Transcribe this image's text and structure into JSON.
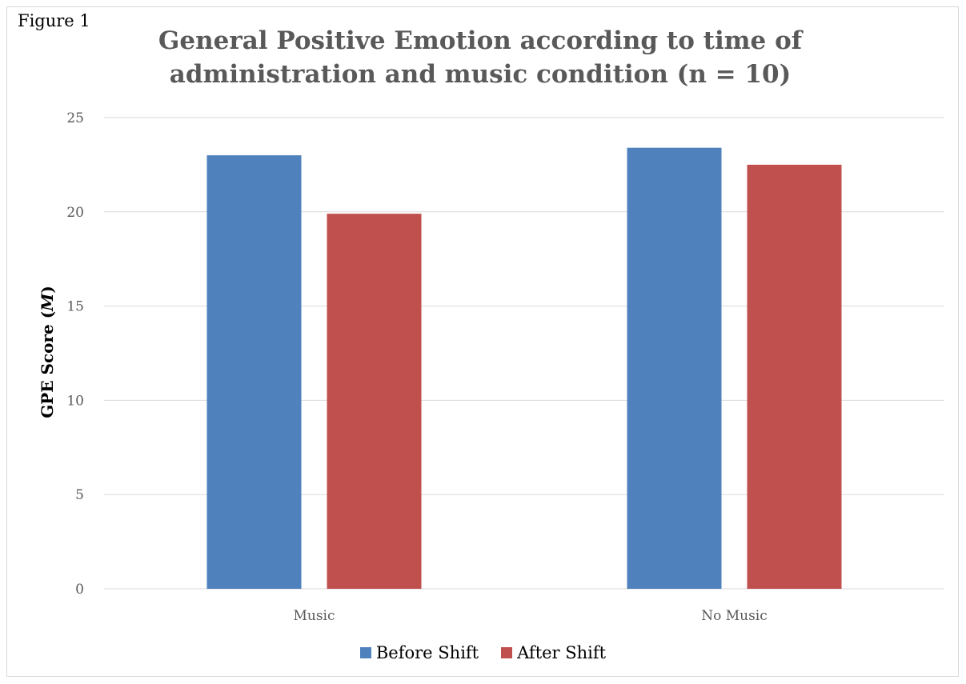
{
  "figure_label": "Figure 1",
  "colors": {
    "before_shift": "#4f81bd",
    "after_shift": "#c0504d",
    "gridline": "#d9d9d9",
    "tick_text": "#595959"
  },
  "chart_data": {
    "type": "bar",
    "title": "General Positive Emotion according to time of\nadministration and music condition          (n = 10)",
    "xlabel": "",
    "ylabel_main": "GPE Score (",
    "ylabel_italic": "M",
    "ylabel_close": ")",
    "categories": [
      "Music",
      "No Music"
    ],
    "series": [
      {
        "name": "Before Shift",
        "values": [
          23.0,
          23.4
        ]
      },
      {
        "name": "After Shift",
        "values": [
          19.9,
          22.5
        ]
      }
    ],
    "ylim": [
      0,
      25
    ],
    "yticks": [
      "0",
      "5",
      "10",
      "15",
      "20",
      "25"
    ],
    "grid": true,
    "legend_position": "bottom"
  }
}
